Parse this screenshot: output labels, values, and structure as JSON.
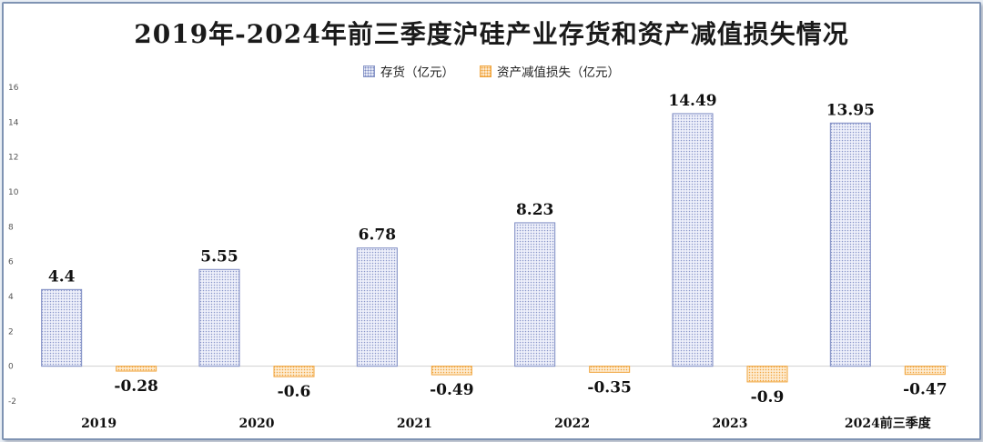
{
  "chart_data": {
    "type": "bar",
    "title": "2019年-2024年前三季度沪硅产业存货和资产减值损失情况",
    "categories": [
      "2019",
      "2020",
      "2021",
      "2022",
      "2023",
      "2024前三季度"
    ],
    "series": [
      {
        "name": "存货（亿元）",
        "values": [
          4.4,
          5.55,
          6.78,
          8.23,
          14.49,
          13.95
        ],
        "labels": [
          "4.4",
          "5.55",
          "6.78",
          "8.23",
          "14.49",
          "13.95"
        ]
      },
      {
        "name": "资产减值损失（亿元）",
        "values": [
          -0.28,
          -0.6,
          -0.49,
          -0.35,
          -0.9,
          -0.47
        ],
        "labels": [
          "-0.28",
          "-0.6",
          "-0.49",
          "-0.35",
          "-0.9",
          "-0.47"
        ]
      }
    ],
    "yticks": [
      "16",
      "14",
      "12",
      "10",
      "8",
      "6",
      "4",
      "2",
      "0",
      "-2"
    ],
    "ylim": [
      -2,
      16
    ],
    "legend_position": "top-center",
    "grid": false,
    "colors": {
      "inventory_fill": "#e6eaf7",
      "inventory_border": "#7c8ac2",
      "loss_fill": "#fde6c7",
      "loss_border": "#f0a43c"
    }
  }
}
